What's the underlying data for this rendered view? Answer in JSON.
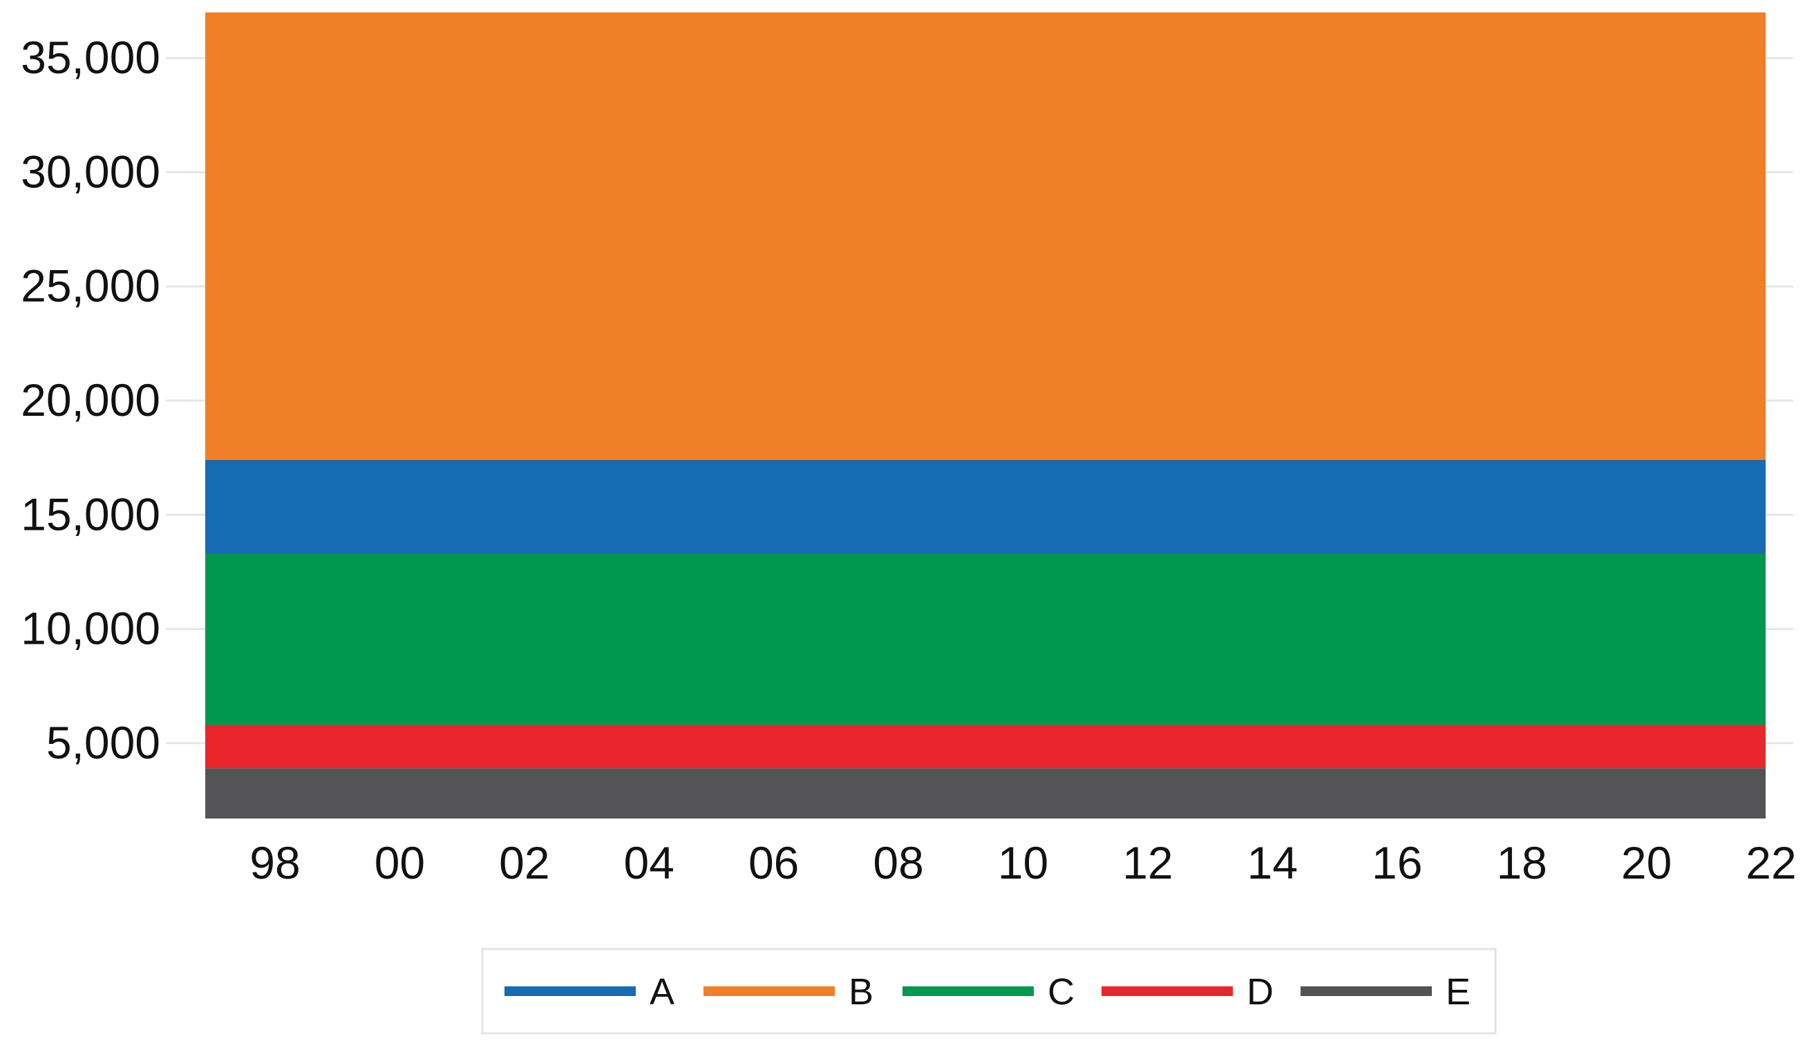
{
  "chart_data": {
    "type": "area",
    "stacked": true,
    "x_tick_labels": [
      "98",
      "00",
      "02",
      "04",
      "06",
      "08",
      "10",
      "12",
      "14",
      "16",
      "18",
      "20",
      "22"
    ],
    "x": [
      1997,
      2022
    ],
    "xlim": [
      1997,
      2022
    ],
    "y_tick_labels": [
      "5,000",
      "10,000",
      "15,000",
      "20,000",
      "25,000",
      "30,000",
      "35,000"
    ],
    "y_ticks": [
      5000,
      10000,
      15000,
      20000,
      25000,
      30000,
      35000
    ],
    "ylim": [
      1700,
      37000
    ],
    "grid": "horizontal",
    "legend_position": "bottom",
    "series": [
      {
        "name": "E",
        "color": "#545456",
        "values": [
          3900,
          3900
        ]
      },
      {
        "name": "D",
        "color": "#E8262B",
        "values": [
          1900,
          1900
        ]
      },
      {
        "name": "C",
        "color": "#00984F",
        "values": [
          7500,
          7500
        ]
      },
      {
        "name": "A",
        "color": "#176BB2",
        "values": [
          4100,
          4100
        ]
      },
      {
        "name": "B",
        "color": "#F17F28",
        "values": [
          19600,
          19600
        ]
      }
    ],
    "legend": [
      {
        "label": "A",
        "color": "#176BB2"
      },
      {
        "label": "B",
        "color": "#F17F28"
      },
      {
        "label": "C",
        "color": "#00984F"
      },
      {
        "label": "D",
        "color": "#E8262B"
      },
      {
        "label": "E",
        "color": "#545456"
      }
    ]
  }
}
